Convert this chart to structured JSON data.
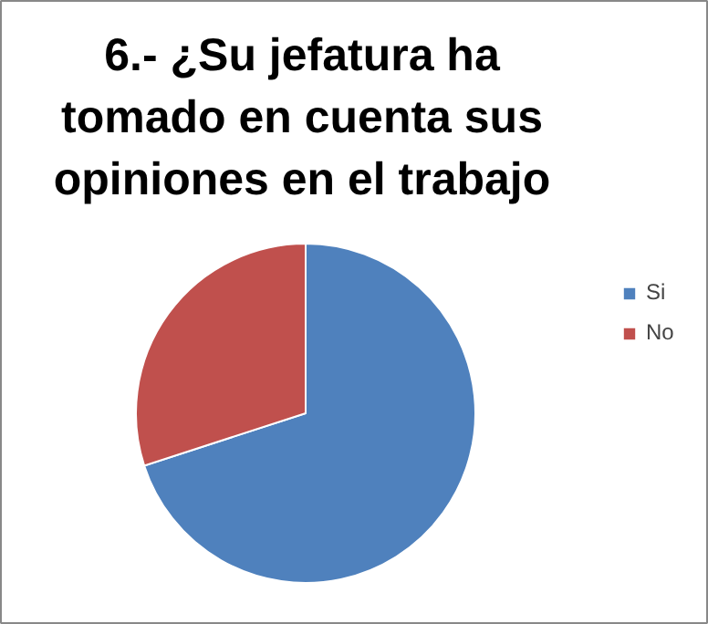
{
  "chart_data": {
    "type": "pie",
    "title": "6.- ¿Su jefatura ha tomado en cuenta sus opiniones en el trabajo",
    "categories": [
      "Si",
      "No"
    ],
    "values": [
      70,
      30
    ],
    "colors": [
      "#4f81bd",
      "#c0504d"
    ],
    "legend": "right"
  }
}
